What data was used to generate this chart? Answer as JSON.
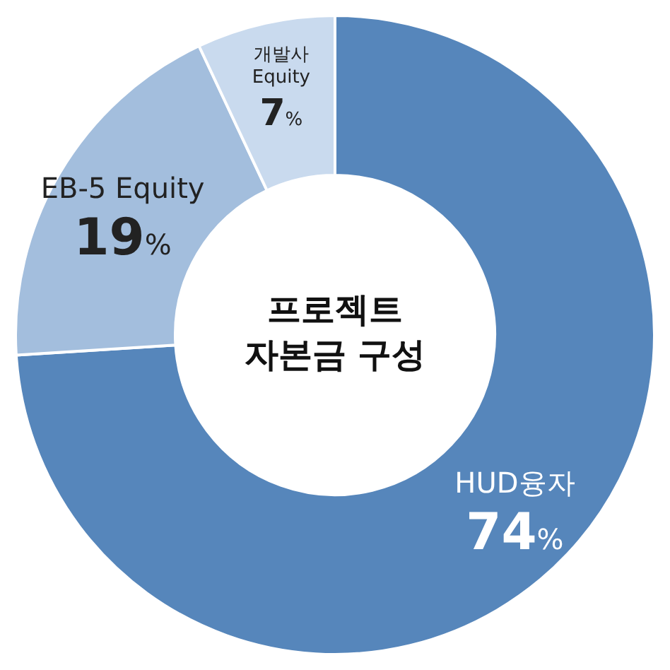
{
  "chart_data": {
    "type": "donut",
    "title": "프로젝트\n자본금 구성",
    "categories": [
      "HUD융자",
      "EB-5 Equity",
      "개발사 Equity"
    ],
    "values": [
      74,
      19,
      7
    ],
    "colors": [
      "#5686bb",
      "#a3bedd",
      "#c9daee"
    ],
    "value_labels": [
      "74%",
      "19%",
      "7%"
    ],
    "legend": false
  }
}
